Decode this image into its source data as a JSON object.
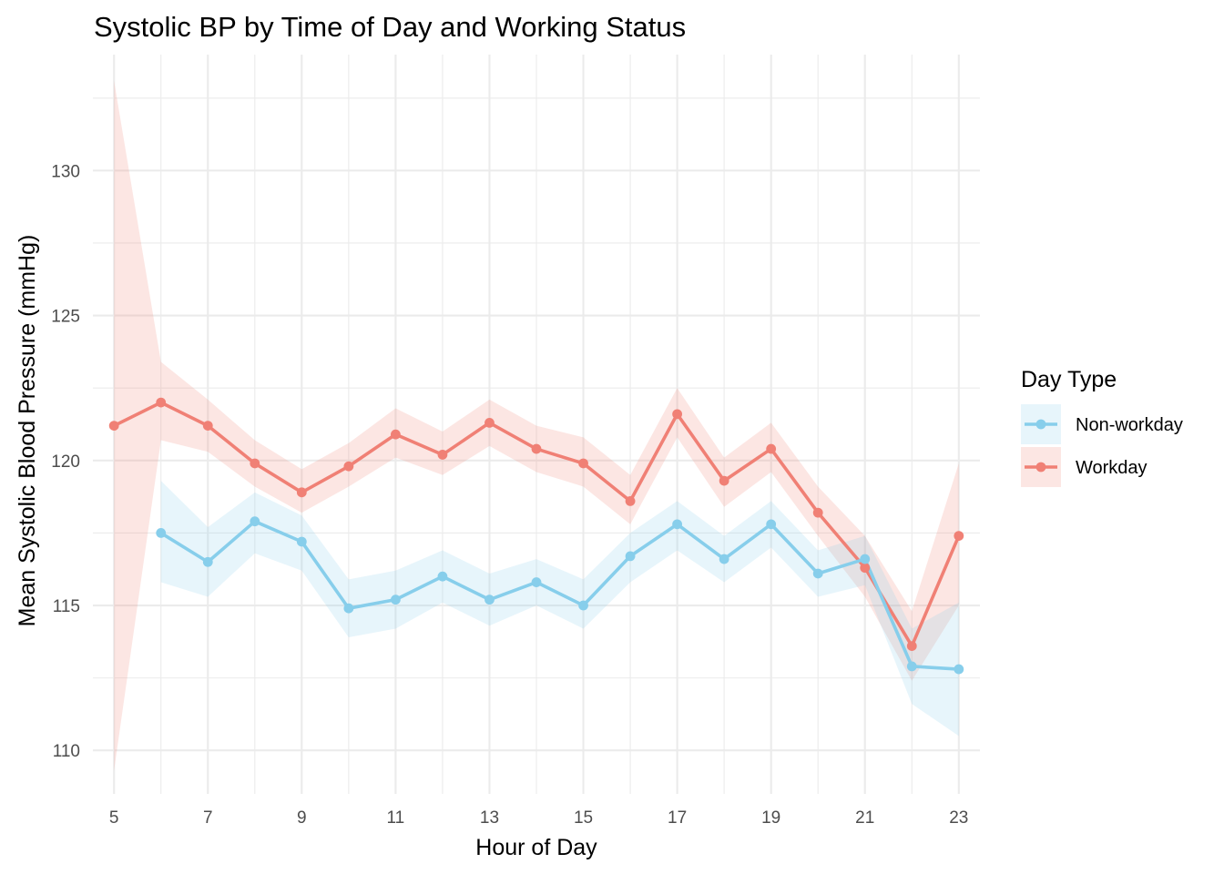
{
  "chart_data": {
    "type": "line",
    "title": "Systolic BP by Time of Day and Working Status",
    "xlabel": "Hour of Day",
    "ylabel": "Mean Systolic Blood Pressure (mmHg)",
    "x_ticks": [
      5,
      7,
      9,
      11,
      13,
      15,
      17,
      19,
      21,
      23
    ],
    "y_ticks": [
      110,
      115,
      120,
      125,
      130
    ],
    "xlim": [
      4.55,
      23.45
    ],
    "ylim": [
      108.5,
      134.0
    ],
    "grid": true,
    "legend": {
      "title": "Day Type",
      "position": "right",
      "entries": [
        "Non-workday",
        "Workday"
      ]
    },
    "series": [
      {
        "name": "Non-workday",
        "color": "#87CEEB",
        "points": [
          {
            "x": 6,
            "y": 117.5,
            "lo": 115.8,
            "hi": 119.3
          },
          {
            "x": 7,
            "y": 116.5,
            "lo": 115.3,
            "hi": 117.7
          },
          {
            "x": 8,
            "y": 117.9,
            "lo": 116.8,
            "hi": 118.9
          },
          {
            "x": 9,
            "y": 117.2,
            "lo": 116.2,
            "hi": 118.1
          },
          {
            "x": 10,
            "y": 114.9,
            "lo": 113.9,
            "hi": 115.9
          },
          {
            "x": 11,
            "y": 115.2,
            "lo": 114.2,
            "hi": 116.2
          },
          {
            "x": 12,
            "y": 116.0,
            "lo": 115.1,
            "hi": 116.9
          },
          {
            "x": 13,
            "y": 115.2,
            "lo": 114.3,
            "hi": 116.1
          },
          {
            "x": 14,
            "y": 115.8,
            "lo": 115.0,
            "hi": 116.6
          },
          {
            "x": 15,
            "y": 115.0,
            "lo": 114.2,
            "hi": 115.9
          },
          {
            "x": 16,
            "y": 116.7,
            "lo": 115.8,
            "hi": 117.5
          },
          {
            "x": 17,
            "y": 117.8,
            "lo": 116.9,
            "hi": 118.6
          },
          {
            "x": 18,
            "y": 116.6,
            "lo": 115.8,
            "hi": 117.4
          },
          {
            "x": 19,
            "y": 117.8,
            "lo": 117.0,
            "hi": 118.6
          },
          {
            "x": 20,
            "y": 116.1,
            "lo": 115.3,
            "hi": 116.9
          },
          {
            "x": 21,
            "y": 116.6,
            "lo": 115.7,
            "hi": 117.4
          },
          {
            "x": 22,
            "y": 112.9,
            "lo": 111.6,
            "hi": 114.2
          },
          {
            "x": 23,
            "y": 112.8,
            "lo": 110.5,
            "hi": 115.1
          }
        ]
      },
      {
        "name": "Workday",
        "color": "#F08075",
        "points": [
          {
            "x": 5,
            "y": 121.2,
            "lo": 109.3,
            "hi": 133.1
          },
          {
            "x": 6,
            "y": 122.0,
            "lo": 120.7,
            "hi": 123.4
          },
          {
            "x": 7,
            "y": 121.2,
            "lo": 120.3,
            "hi": 122.1
          },
          {
            "x": 8,
            "y": 119.9,
            "lo": 119.1,
            "hi": 120.7
          },
          {
            "x": 9,
            "y": 118.9,
            "lo": 118.2,
            "hi": 119.7
          },
          {
            "x": 10,
            "y": 119.8,
            "lo": 119.1,
            "hi": 120.6
          },
          {
            "x": 11,
            "y": 120.9,
            "lo": 120.1,
            "hi": 121.8
          },
          {
            "x": 12,
            "y": 120.2,
            "lo": 119.5,
            "hi": 121.0
          },
          {
            "x": 13,
            "y": 121.3,
            "lo": 120.5,
            "hi": 122.1
          },
          {
            "x": 14,
            "y": 120.4,
            "lo": 119.6,
            "hi": 121.2
          },
          {
            "x": 15,
            "y": 119.9,
            "lo": 119.1,
            "hi": 120.8
          },
          {
            "x": 16,
            "y": 118.6,
            "lo": 117.8,
            "hi": 119.5
          },
          {
            "x": 17,
            "y": 121.6,
            "lo": 120.8,
            "hi": 122.5
          },
          {
            "x": 18,
            "y": 119.3,
            "lo": 118.4,
            "hi": 120.1
          },
          {
            "x": 19,
            "y": 120.4,
            "lo": 119.6,
            "hi": 121.3
          },
          {
            "x": 20,
            "y": 118.2,
            "lo": 117.4,
            "hi": 119.1
          },
          {
            "x": 21,
            "y": 116.3,
            "lo": 115.3,
            "hi": 117.4
          },
          {
            "x": 22,
            "y": 113.6,
            "lo": 112.4,
            "hi": 114.8
          },
          {
            "x": 23,
            "y": 117.4,
            "lo": 115.0,
            "hi": 119.9
          }
        ]
      }
    ]
  }
}
